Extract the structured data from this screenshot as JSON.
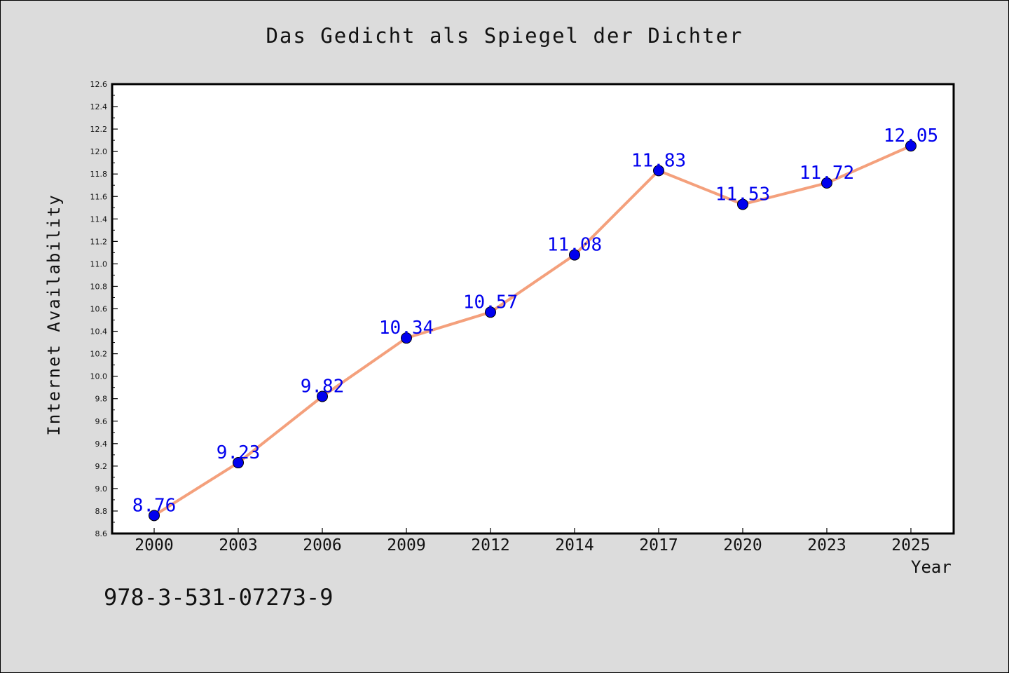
{
  "title": "Das Gedicht als Spiegel der Dichter",
  "isbn": "978-3-531-07273-9",
  "chart_data": {
    "type": "line",
    "title": "Das Gedicht als Spiegel der Dichter",
    "xlabel": "Year",
    "ylabel": "Internet Availability",
    "categories": [
      "2000",
      "2003",
      "2006",
      "2009",
      "2012",
      "2014",
      "2017",
      "2020",
      "2023",
      "2025"
    ],
    "series": [
      {
        "values": [
          8.76,
          9.23,
          9.82,
          10.34,
          10.57,
          11.08,
          11.83,
          11.53,
          11.72,
          12.05
        ],
        "labels": [
          "8.76",
          "9.23",
          "9.82",
          "10.34",
          "10.57",
          "11.08",
          "11.83",
          "11.53",
          "11.72",
          "12.05"
        ],
        "line_color": "#f4a07c",
        "marker_color": "#0000ee",
        "label_color": "#0000ee"
      }
    ],
    "ylim": [
      8.6,
      12.6
    ],
    "y_ticks": [
      "8.6",
      "8.8",
      "9.0",
      "9.2",
      "9.4",
      "9.6",
      "9.8",
      "10.0",
      "10.2",
      "10.4",
      "10.6",
      "10.8",
      "11.0",
      "11.2",
      "11.4",
      "11.6",
      "11.8",
      "12.0",
      "12.2",
      "12.4",
      "12.6"
    ],
    "grid": false,
    "legend": "none",
    "plot_background": "#ffffff",
    "figure_background": "#dcdcdc"
  }
}
